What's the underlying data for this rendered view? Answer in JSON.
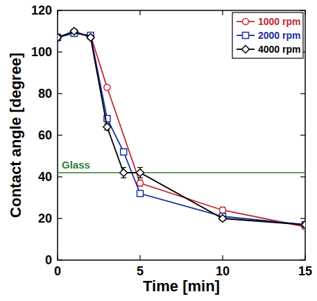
{
  "chart_data": {
    "type": "line",
    "x_label": "Time [min]",
    "y_label": "Contact angle [degree]",
    "xlim": [
      0,
      15
    ],
    "xticks": [
      0,
      5,
      10,
      15
    ],
    "ylim": [
      0,
      120
    ],
    "yticks": [
      0,
      20,
      40,
      60,
      80,
      100,
      120
    ],
    "legend": "top-right",
    "grid": false,
    "reference_lines": [
      {
        "label": "Glass",
        "value": 42,
        "color": "#2e7d32"
      }
    ],
    "series": [
      {
        "name": "1000 rpm",
        "color": "#c0282d",
        "marker": "circle",
        "x": [
          0,
          1,
          2,
          3,
          5,
          10,
          15
        ],
        "values": [
          107,
          109,
          108,
          83,
          37,
          24,
          16
        ],
        "errors": [
          1.5,
          1,
          1,
          1,
          1.5,
          1.5,
          1
        ]
      },
      {
        "name": "2000 rpm",
        "color": "#1c2fa0",
        "marker": "square",
        "x": [
          0,
          1,
          2,
          3,
          4,
          5,
          10,
          15
        ],
        "values": [
          107,
          109,
          108,
          68,
          52,
          32,
          21,
          17
        ],
        "errors": [
          1.5,
          1,
          1,
          1.5,
          1.5,
          1,
          1,
          1.5
        ]
      },
      {
        "name": "4000 rpm",
        "color": "#000000",
        "marker": "diamond",
        "x": [
          0,
          1,
          2,
          3,
          4,
          5,
          10,
          15
        ],
        "values": [
          107,
          110,
          107,
          64,
          42,
          42,
          20,
          17
        ],
        "errors": [
          1.5,
          1,
          1,
          1.5,
          2.5,
          2.5,
          1,
          1
        ]
      }
    ]
  }
}
